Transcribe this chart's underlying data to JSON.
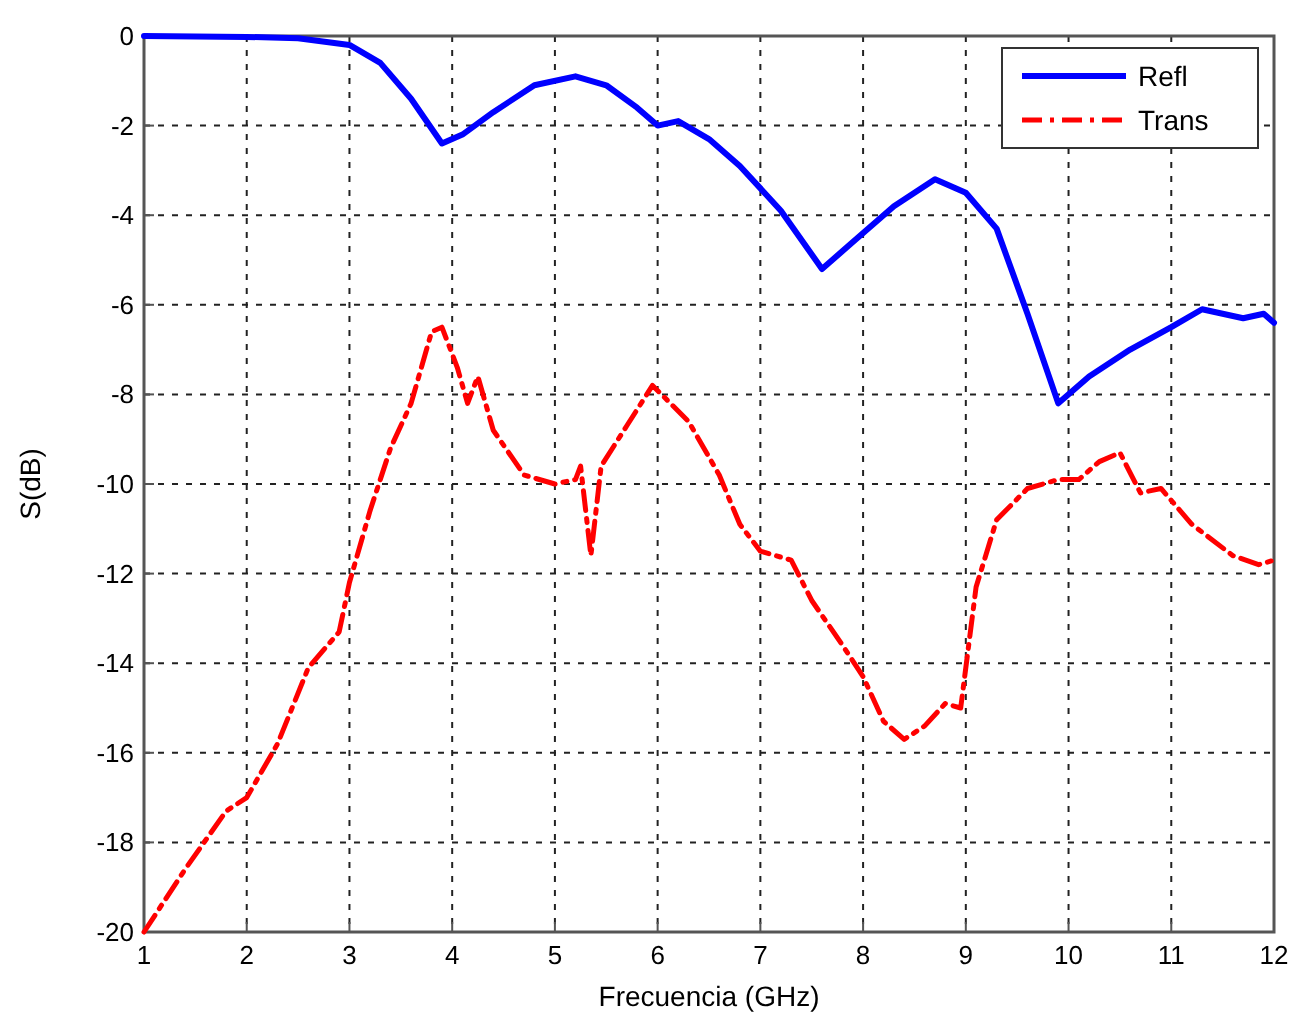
{
  "chart_data": {
    "type": "line",
    "xlabel": "Frecuencia (GHz)",
    "ylabel": "S(dB)",
    "xlim": [
      1,
      12
    ],
    "ylim": [
      -20,
      0
    ],
    "xticks": [
      1,
      2,
      3,
      4,
      5,
      6,
      7,
      8,
      9,
      10,
      11,
      12
    ],
    "yticks": [
      -20,
      -18,
      -16,
      -14,
      -12,
      -10,
      -8,
      -6,
      -4,
      -2,
      0
    ],
    "grid": true,
    "legend": "top right",
    "series": [
      {
        "name": "Refl",
        "color": "#0000ff",
        "line_style": "solid",
        "x": [
          1,
          2,
          2.5,
          3,
          3.3,
          3.6,
          3.9,
          4.1,
          4.4,
          4.8,
          5.2,
          5.5,
          5.8,
          6,
          6.2,
          6.5,
          6.8,
          7.2,
          7.6,
          7.9,
          8.3,
          8.7,
          9,
          9.3,
          9.6,
          9.9,
          10.2,
          10.6,
          11,
          11.3,
          11.7,
          11.9,
          12
        ],
        "values": [
          0,
          -0.02,
          -0.05,
          -0.2,
          -0.6,
          -1.4,
          -2.4,
          -2.2,
          -1.7,
          -1.1,
          -0.9,
          -1.1,
          -1.6,
          -2,
          -1.9,
          -2.3,
          -2.9,
          -3.9,
          -5.2,
          -4.6,
          -3.8,
          -3.2,
          -3.5,
          -4.3,
          -6.2,
          -8.2,
          -7.6,
          -7,
          -6.5,
          -6.1,
          -6.3,
          -6.2,
          -6.4
        ]
      },
      {
        "name": "Trans",
        "color": "#ff0000",
        "line_style": "dashdot",
        "x": [
          1,
          1.4,
          1.8,
          2,
          2.3,
          2.6,
          2.9,
          3,
          3.2,
          3.4,
          3.6,
          3.8,
          3.9,
          4.05,
          4.15,
          4.25,
          4.4,
          4.7,
          5,
          5.2,
          5.25,
          5.35,
          5.45,
          5.7,
          5.95,
          6.3,
          6.6,
          6.8,
          7,
          7.3,
          7.5,
          7.8,
          8,
          8.2,
          8.4,
          8.6,
          8.8,
          8.95,
          9.1,
          9.3,
          9.6,
          9.9,
          10.1,
          10.3,
          10.5,
          10.7,
          10.9,
          11.2,
          11.6,
          11.85,
          12
        ],
        "values": [
          -20,
          -18.6,
          -17.3,
          -17,
          -15.8,
          -14.1,
          -13.3,
          -12.2,
          -10.6,
          -9.2,
          -8.2,
          -6.6,
          -6.5,
          -7.4,
          -8.2,
          -7.6,
          -8.8,
          -9.8,
          -10,
          -9.9,
          -9.6,
          -11.6,
          -9.6,
          -8.7,
          -7.8,
          -8.6,
          -9.8,
          -10.9,
          -11.5,
          -11.7,
          -12.6,
          -13.6,
          -14.3,
          -15.3,
          -15.7,
          -15.4,
          -14.9,
          -15,
          -12.3,
          -10.8,
          -10.1,
          -9.9,
          -9.9,
          -9.5,
          -9.3,
          -10.2,
          -10.1,
          -10.9,
          -11.6,
          -11.8,
          -11.7
        ]
      }
    ]
  }
}
